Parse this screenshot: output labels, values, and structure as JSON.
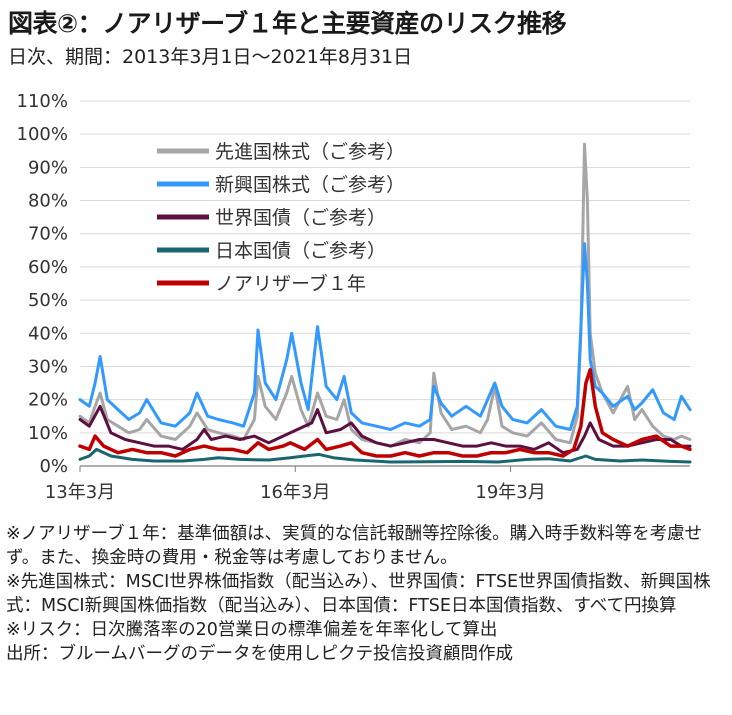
{
  "header": {
    "title": "図表②：ノアリザーブ１年と主要資産のリスク推移",
    "subtitle": "日次、期間：2013年3月1日～2021年8月31日"
  },
  "notes": [
    "※ノアリザーブ１年：基準価額は、実質的な信託報酬等控除後。購入時手数料等を考慮せず。また、換金時の費用・税金等は考慮しておりません。",
    "※先進国株式：MSCI世界株価指数（配当込み）、世界国債：FTSE世界国債指数、新興国株式：MSCI新興国株価指数（配当込み）、日本国債：FTSE日本国債指数、すべて円換算",
    "※リスク：日次騰落率の20営業日の標準偏差を年率化して算出",
    "出所：ブルームバーグのデータを使用しピクテ投信投資顧問作成"
  ],
  "chart_data": {
    "type": "line",
    "x_ticks": [
      "13年3月",
      "16年3月",
      "19年3月"
    ],
    "y_ticks": [
      "0%",
      "10%",
      "20%",
      "30%",
      "40%",
      "50%",
      "60%",
      "70%",
      "80%",
      "90%",
      "100%",
      "110%"
    ],
    "ylim": [
      0,
      110
    ],
    "x_range": [
      2013.17,
      2021.67
    ],
    "grid": "horizontal",
    "legend_position": "top-left",
    "series": [
      {
        "name": "先進国株式（ご参考）",
        "color": "#a6a6a6",
        "x": [
          2013.17,
          2013.3,
          2013.38,
          2013.45,
          2013.55,
          2013.7,
          2013.85,
          2014.0,
          2014.1,
          2014.3,
          2014.5,
          2014.7,
          2014.8,
          2014.95,
          2015.1,
          2015.3,
          2015.45,
          2015.6,
          2015.65,
          2015.75,
          2015.9,
          2016.05,
          2016.12,
          2016.25,
          2016.35,
          2016.48,
          2016.6,
          2016.75,
          2016.85,
          2016.95,
          2017.1,
          2017.3,
          2017.5,
          2017.7,
          2017.9,
          2018.05,
          2018.1,
          2018.2,
          2018.35,
          2018.55,
          2018.75,
          2018.85,
          2018.95,
          2019.05,
          2019.2,
          2019.4,
          2019.6,
          2019.8,
          2020.0,
          2020.1,
          2020.15,
          2020.2,
          2020.24,
          2020.28,
          2020.35,
          2020.45,
          2020.6,
          2020.8,
          2020.9,
          2021.0,
          2021.15,
          2021.3,
          2021.45,
          2021.55,
          2021.67
        ],
        "values": [
          15,
          13,
          18,
          22,
          14,
          12,
          10,
          11,
          14,
          9,
          8,
          12,
          16,
          11,
          10,
          9,
          8,
          14,
          27,
          18,
          14,
          22,
          27,
          17,
          12,
          22,
          15,
          14,
          20,
          11,
          8,
          7,
          6,
          8,
          7,
          10,
          28,
          16,
          11,
          12,
          10,
          14,
          24,
          12,
          10,
          9,
          13,
          8,
          7,
          15,
          40,
          97,
          80,
          40,
          28,
          22,
          16,
          24,
          14,
          17,
          12,
          9,
          8,
          9,
          8
        ]
      },
      {
        "name": "新興国株式（ご参考）",
        "color": "#3399ff",
        "x": [
          2013.17,
          2013.3,
          2013.38,
          2013.45,
          2013.55,
          2013.7,
          2013.85,
          2014.0,
          2014.1,
          2014.3,
          2014.5,
          2014.7,
          2014.8,
          2014.95,
          2015.1,
          2015.3,
          2015.45,
          2015.6,
          2015.65,
          2015.75,
          2015.9,
          2016.05,
          2016.12,
          2016.25,
          2016.35,
          2016.48,
          2016.6,
          2016.75,
          2016.85,
          2016.95,
          2017.1,
          2017.3,
          2017.5,
          2017.7,
          2017.9,
          2018.05,
          2018.1,
          2018.2,
          2018.35,
          2018.55,
          2018.75,
          2018.85,
          2018.95,
          2019.05,
          2019.2,
          2019.4,
          2019.6,
          2019.8,
          2020.0,
          2020.1,
          2020.15,
          2020.2,
          2020.24,
          2020.28,
          2020.35,
          2020.45,
          2020.6,
          2020.8,
          2020.9,
          2021.0,
          2021.15,
          2021.3,
          2021.45,
          2021.55,
          2021.67
        ],
        "values": [
          20,
          18,
          25,
          33,
          20,
          17,
          14,
          16,
          20,
          13,
          12,
          16,
          22,
          15,
          14,
          13,
          12,
          22,
          41,
          25,
          20,
          32,
          40,
          25,
          17,
          42,
          24,
          20,
          27,
          16,
          13,
          12,
          11,
          13,
          12,
          14,
          24,
          19,
          15,
          18,
          15,
          20,
          25,
          18,
          14,
          13,
          17,
          12,
          11,
          18,
          42,
          67,
          55,
          32,
          24,
          22,
          18,
          21,
          17,
          19,
          23,
          16,
          14,
          21,
          17
        ]
      },
      {
        "name": "世界国債（ご参考）",
        "color": "#5c1040",
        "x": [
          2013.17,
          2013.3,
          2013.45,
          2013.6,
          2013.8,
          2014.0,
          2014.2,
          2014.4,
          2014.6,
          2014.8,
          2014.9,
          2015.0,
          2015.2,
          2015.4,
          2015.6,
          2015.8,
          2016.0,
          2016.2,
          2016.4,
          2016.48,
          2016.6,
          2016.8,
          2016.95,
          2017.1,
          2017.3,
          2017.5,
          2017.7,
          2017.9,
          2018.1,
          2018.3,
          2018.5,
          2018.7,
          2018.9,
          2019.1,
          2019.3,
          2019.5,
          2019.7,
          2019.9,
          2020.1,
          2020.2,
          2020.28,
          2020.4,
          2020.6,
          2020.8,
          2021.0,
          2021.2,
          2021.4,
          2021.55,
          2021.67
        ],
        "values": [
          14,
          12,
          18,
          10,
          8,
          7,
          6,
          6,
          5,
          8,
          11,
          8,
          9,
          8,
          9,
          7,
          9,
          11,
          13,
          17,
          10,
          11,
          13,
          9,
          7,
          6,
          7,
          8,
          8,
          7,
          6,
          6,
          7,
          6,
          6,
          5,
          7,
          4,
          5,
          9,
          13,
          8,
          6,
          6,
          7,
          8,
          8,
          6,
          6
        ]
      },
      {
        "name": "日本国債（ご参考）",
        "color": "#1a6670",
        "x": [
          2013.17,
          2013.3,
          2013.4,
          2013.6,
          2013.9,
          2014.2,
          2014.6,
          2014.9,
          2015.1,
          2015.4,
          2015.8,
          2016.1,
          2016.3,
          2016.5,
          2016.7,
          2017.0,
          2017.5,
          2018.0,
          2018.5,
          2019.0,
          2019.4,
          2019.7,
          2020.0,
          2020.22,
          2020.35,
          2020.7,
          2021.0,
          2021.4,
          2021.67
        ],
        "values": [
          2,
          3,
          5,
          3,
          2,
          1.5,
          1.5,
          2,
          2.5,
          2,
          1.8,
          2.5,
          3,
          3.5,
          2.5,
          1.8,
          1.2,
          1.3,
          1.4,
          1.2,
          2,
          2.2,
          1.5,
          3,
          2,
          1.5,
          1.8,
          1.4,
          1.2
        ]
      },
      {
        "name": "ノアリザーブ１年",
        "color": "#c00000",
        "x": [
          2013.17,
          2013.3,
          2013.38,
          2013.5,
          2013.7,
          2013.9,
          2014.1,
          2014.3,
          2014.5,
          2014.7,
          2014.9,
          2015.1,
          2015.3,
          2015.5,
          2015.65,
          2015.8,
          2016.0,
          2016.1,
          2016.3,
          2016.48,
          2016.6,
          2016.8,
          2016.95,
          2017.1,
          2017.3,
          2017.5,
          2017.7,
          2017.9,
          2018.1,
          2018.3,
          2018.5,
          2018.7,
          2018.9,
          2019.1,
          2019.3,
          2019.5,
          2019.7,
          2019.9,
          2020.05,
          2020.15,
          2020.22,
          2020.28,
          2020.35,
          2020.45,
          2020.6,
          2020.8,
          2021.0,
          2021.2,
          2021.4,
          2021.55,
          2021.67
        ],
        "values": [
          6,
          5,
          9,
          6,
          4,
          5,
          4,
          4,
          3,
          5,
          6,
          5,
          5,
          4,
          7,
          5,
          6,
          7,
          5,
          8,
          5,
          6,
          7,
          4,
          3,
          3,
          4,
          3,
          4,
          4,
          3,
          3,
          4,
          4,
          5,
          4,
          4,
          3,
          5,
          12,
          25,
          29,
          18,
          10,
          8,
          6,
          8,
          9,
          6,
          6,
          5
        ]
      }
    ]
  }
}
